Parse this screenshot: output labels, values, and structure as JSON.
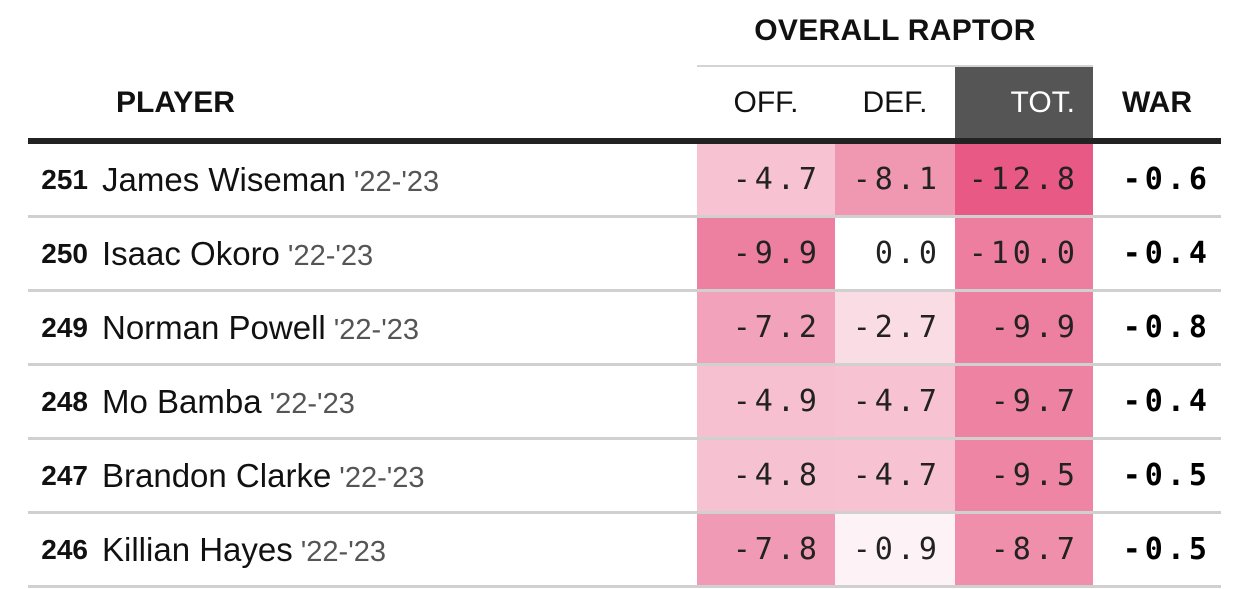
{
  "group_header": "OVERALL RAPTOR",
  "columns": {
    "player": "PLAYER",
    "off": "OFF.",
    "def": "DEF.",
    "tot": "TOT.",
    "war": "WAR"
  },
  "colors": {
    "selected_header_bg": "#555555",
    "pink_strong": "#e85a85",
    "pink_light": "#fbeaf0",
    "neutral": "#ffffff"
  },
  "chart_data": {
    "type": "table",
    "title": "OVERALL RAPTOR",
    "columns": [
      "PLAYER",
      "OFF.",
      "DEF.",
      "TOT.",
      "WAR"
    ],
    "rows": [
      {
        "rank": "251",
        "player": "James Wiseman",
        "season": "'22-'23",
        "off": "-4.7",
        "def": "-8.1",
        "tot": "-12.8",
        "war": "-0.6"
      },
      {
        "rank": "250",
        "player": "Isaac Okoro",
        "season": "'22-'23",
        "off": "-9.9",
        "def": "0.0",
        "tot": "-10.0",
        "war": "-0.4"
      },
      {
        "rank": "249",
        "player": "Norman Powell",
        "season": "'22-'23",
        "off": "-7.2",
        "def": "-2.7",
        "tot": "-9.9",
        "war": "-0.8"
      },
      {
        "rank": "248",
        "player": "Mo Bamba",
        "season": "'22-'23",
        "off": "-4.9",
        "def": "-4.7",
        "tot": "-9.7",
        "war": "-0.4"
      },
      {
        "rank": "247",
        "player": "Brandon Clarke",
        "season": "'22-'23",
        "off": "-4.8",
        "def": "-4.7",
        "tot": "-9.5",
        "war": "-0.5"
      },
      {
        "rank": "246",
        "player": "Killian Hayes",
        "season": "'22-'23",
        "off": "-7.8",
        "def": "-0.9",
        "tot": "-8.7",
        "war": "-0.5"
      }
    ]
  }
}
